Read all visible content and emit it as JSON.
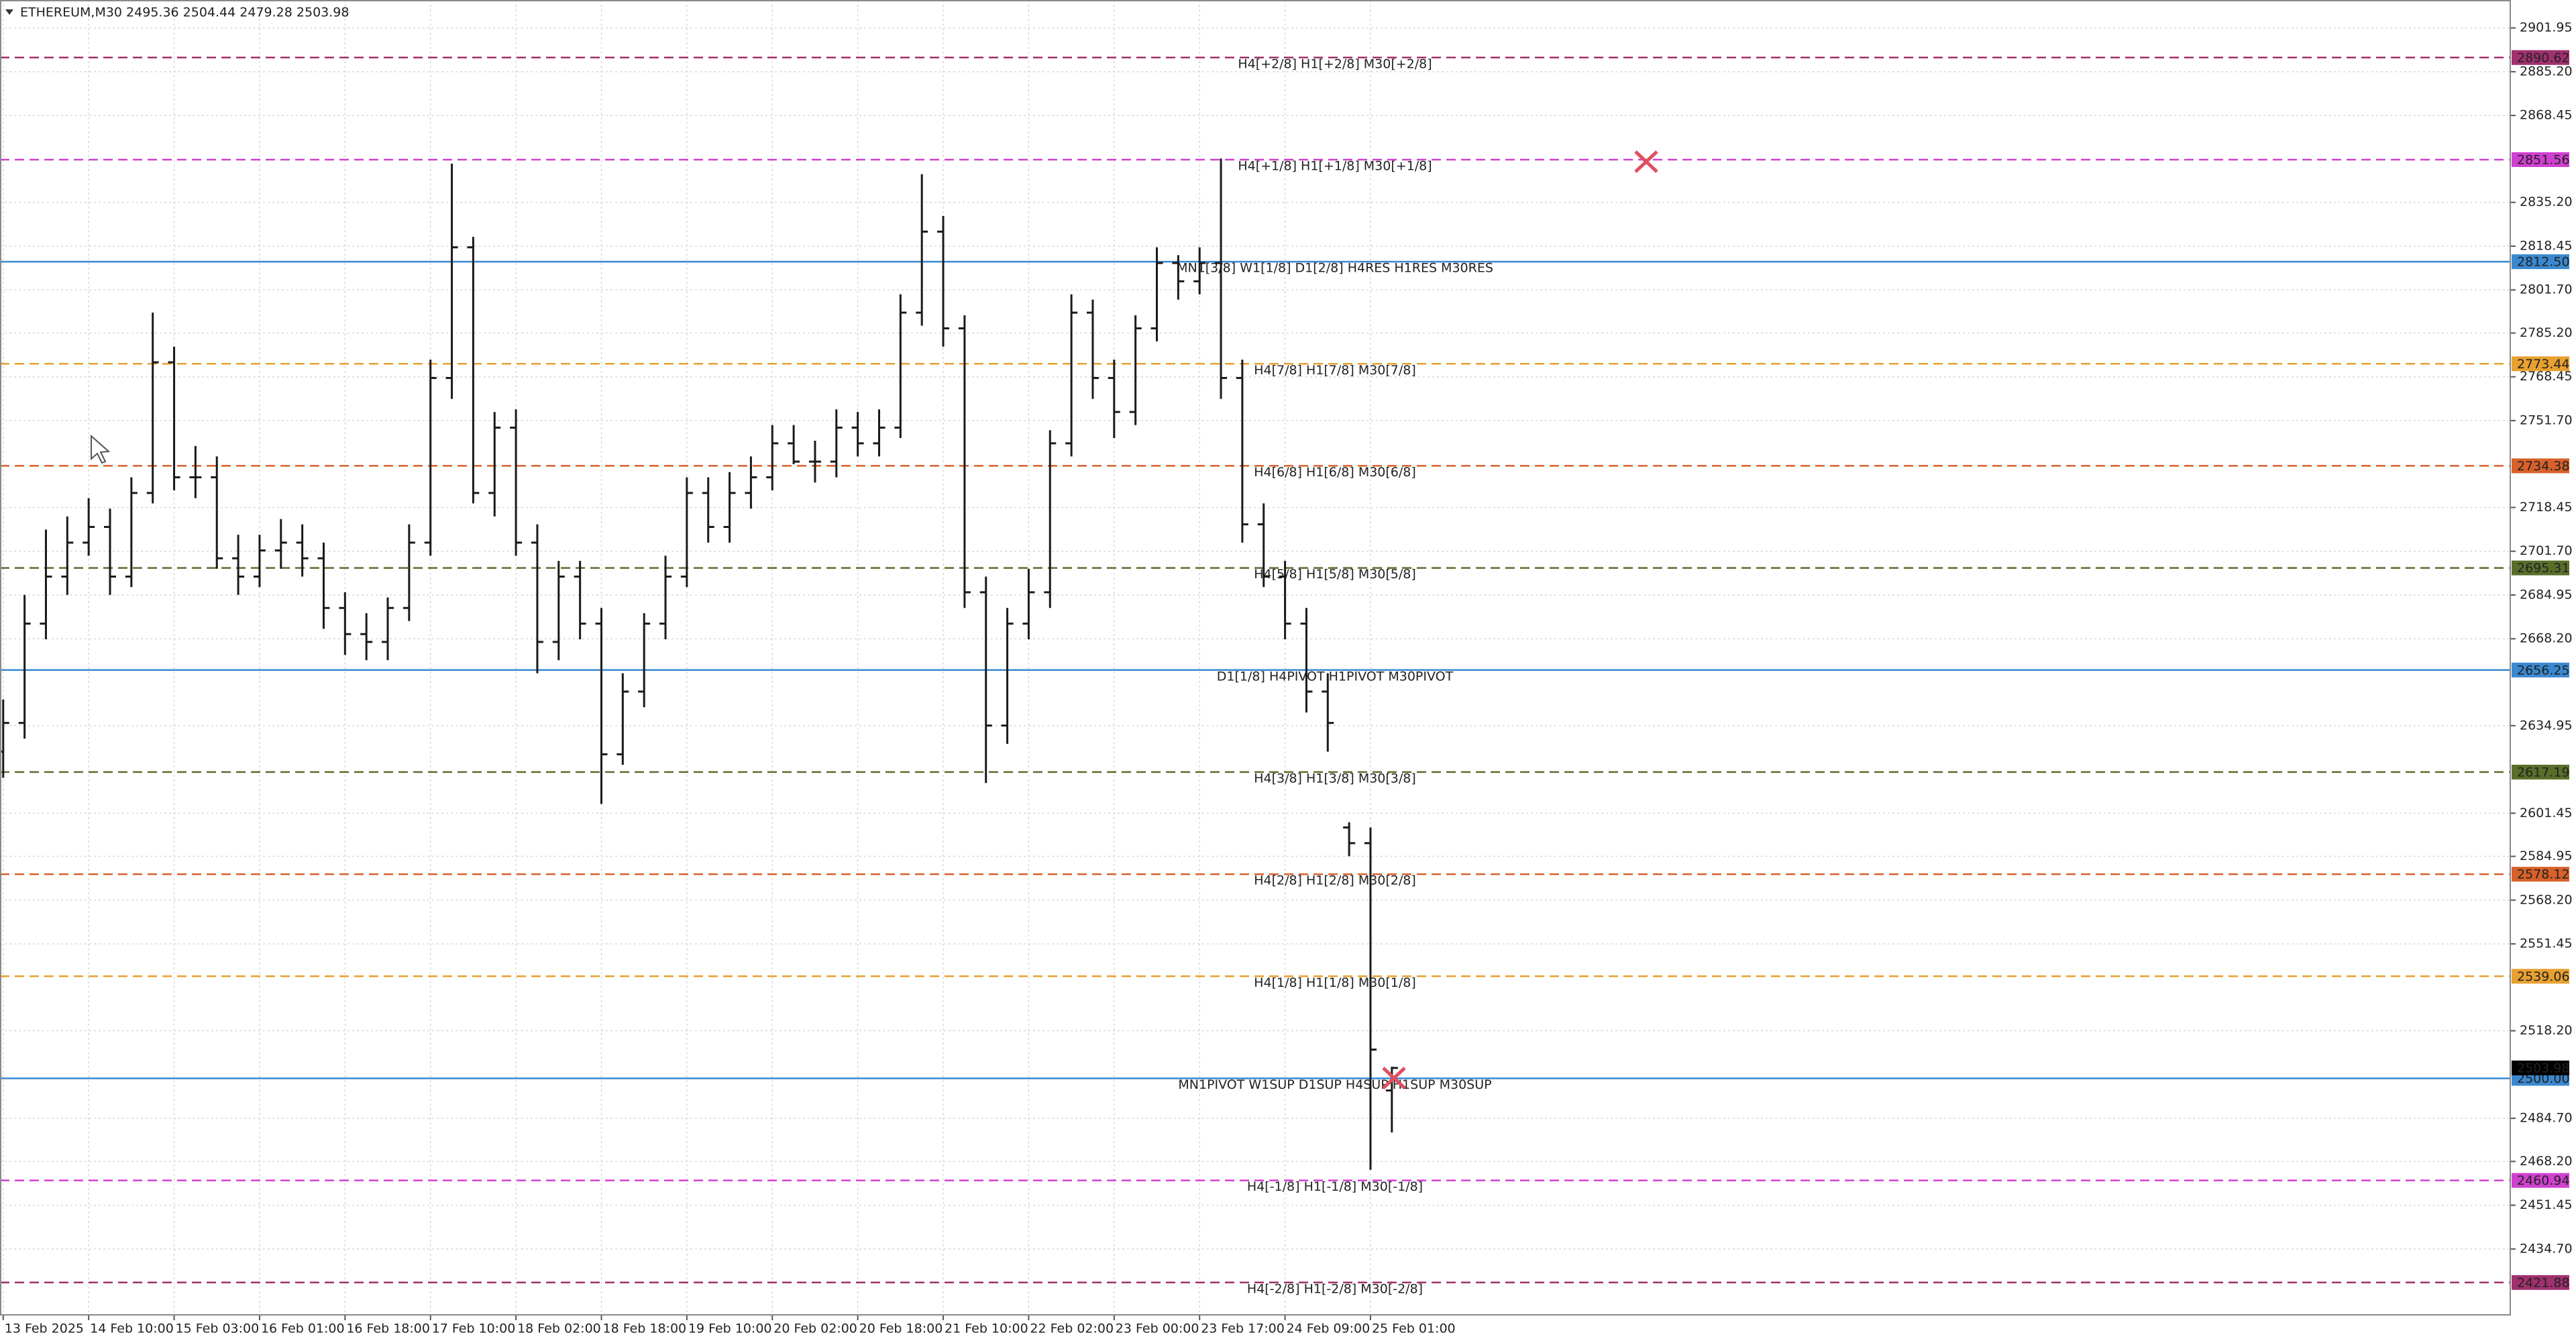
{
  "chart_data": {
    "type": "candlestick",
    "title": "ETHEREUM,M30  2495.36 2504.44 2479.28 2503.98",
    "color": "#1a1a1a",
    "grid": true,
    "xlim": [
      -0.15,
      117.35
    ],
    "ylim": [
      2409.5,
      2912.64
    ],
    "xticks": [
      {
        "value": 0,
        "label": "13 Feb 2025"
      },
      {
        "value": 4,
        "label": "14 Feb 10:00"
      },
      {
        "value": 8,
        "label": "15 Feb 03:00"
      },
      {
        "value": 12,
        "label": "16 Feb 01:00"
      },
      {
        "value": 16,
        "label": "16 Feb 18:00"
      },
      {
        "value": 20,
        "label": "17 Feb 10:00"
      },
      {
        "value": 24,
        "label": "18 Feb 02:00"
      },
      {
        "value": 28,
        "label": "18 Feb 18:00"
      },
      {
        "value": 32,
        "label": "19 Feb 10:00"
      },
      {
        "value": 36,
        "label": "20 Feb 02:00"
      },
      {
        "value": 40,
        "label": "20 Feb 18:00"
      },
      {
        "value": 44,
        "label": "21 Feb 10:00"
      },
      {
        "value": 48,
        "label": "22 Feb 02:00"
      },
      {
        "value": 52,
        "label": "23 Feb 00:00"
      },
      {
        "value": 56,
        "label": "23 Feb 17:00"
      },
      {
        "value": 60,
        "label": "24 Feb 09:00"
      },
      {
        "value": 64,
        "label": "25 Feb 01:00"
      }
    ],
    "yticks": [
      {
        "value": 2901.95,
        "label": "2901.95"
      },
      {
        "value": 2885.2,
        "label": "2885.20"
      },
      {
        "value": 2868.45,
        "label": "2868.45"
      },
      {
        "value": 2835.2,
        "label": "2835.20"
      },
      {
        "value": 2818.45,
        "label": "2818.45"
      },
      {
        "value": 2801.7,
        "label": "2801.70"
      },
      {
        "value": 2785.2,
        "label": "2785.20"
      },
      {
        "value": 2768.45,
        "label": "2768.45"
      },
      {
        "value": 2751.7,
        "label": "2751.70"
      },
      {
        "value": 2718.45,
        "label": "2718.45"
      },
      {
        "value": 2701.7,
        "label": "2701.70"
      },
      {
        "value": 2684.95,
        "label": "2684.95"
      },
      {
        "value": 2668.2,
        "label": "2668.20"
      },
      {
        "value": 2634.95,
        "label": "2634.95"
      },
      {
        "value": 2601.45,
        "label": "2601.45"
      },
      {
        "value": 2584.95,
        "label": "2584.95"
      },
      {
        "value": 2568.2,
        "label": "2568.20"
      },
      {
        "value": 2551.45,
        "label": "2551.45"
      },
      {
        "value": 2518.2,
        "label": "2518.20"
      },
      {
        "value": 2484.7,
        "label": "2484.70"
      },
      {
        "value": 2468.2,
        "label": "2468.20"
      },
      {
        "value": 2451.45,
        "label": "2451.45"
      },
      {
        "value": 2434.7,
        "label": "2434.70"
      }
    ],
    "x": [
      0,
      1,
      2,
      3,
      4,
      5,
      6,
      7,
      8,
      9,
      10,
      11,
      12,
      13,
      14,
      15,
      16,
      17,
      18,
      19,
      20,
      21,
      22,
      23,
      24,
      25,
      26,
      27,
      28,
      29,
      30,
      31,
      32,
      33,
      34,
      35,
      36,
      37,
      38,
      39,
      40,
      41,
      42,
      43,
      44,
      45,
      46,
      47,
      48,
      49,
      50,
      51,
      52,
      53,
      54,
      55,
      56,
      57,
      58,
      59,
      60,
      61,
      62,
      63,
      64,
      65
    ],
    "open": [
      2625,
      2636,
      2674,
      2692,
      2705,
      2711,
      2692,
      2724,
      2774,
      2730,
      2730,
      2699,
      2692,
      2702,
      2705,
      2699,
      2680,
      2670,
      2667,
      2680,
      2705,
      2768,
      2818,
      2724,
      2749,
      2705,
      2667,
      2692,
      2674,
      2624,
      2648,
      2674,
      2692,
      2724,
      2711,
      2724,
      2730,
      2743,
      2736,
      2736,
      2749,
      2743,
      2749,
      2793,
      2824,
      2787,
      2686,
      2635,
      2674,
      2686,
      2743,
      2793,
      2768,
      2755,
      2787,
      2812,
      2805,
      2812,
      2768,
      2712,
      2692,
      2674,
      2648,
      2596,
      2590,
      2495.36
    ],
    "high": [
      2645,
      2685,
      2710,
      2715,
      2722,
      2718,
      2730,
      2793,
      2780,
      2742,
      2738,
      2708,
      2708,
      2714,
      2712,
      2705,
      2686,
      2678,
      2684,
      2712,
      2775,
      2850,
      2822,
      2755,
      2756,
      2712,
      2698,
      2698,
      2680,
      2655,
      2678,
      2700,
      2730,
      2730,
      2732,
      2738,
      2750,
      2750,
      2744,
      2756,
      2755,
      2756,
      2800,
      2846,
      2830,
      2792,
      2692,
      2680,
      2695,
      2748,
      2800,
      2798,
      2775,
      2792,
      2818,
      2815,
      2818,
      2852,
      2775,
      2720,
      2698,
      2680,
      2655,
      2598,
      2596,
      2504.44
    ],
    "low": [
      2615,
      2630,
      2668,
      2685,
      2700,
      2685,
      2688,
      2720,
      2725,
      2722,
      2695,
      2685,
      2688,
      2695,
      2692,
      2672,
      2662,
      2660,
      2660,
      2675,
      2700,
      2760,
      2720,
      2715,
      2700,
      2655,
      2660,
      2668,
      2605,
      2620,
      2642,
      2668,
      2688,
      2705,
      2705,
      2718,
      2725,
      2735,
      2728,
      2730,
      2738,
      2738,
      2745,
      2788,
      2780,
      2680,
      2613,
      2628,
      2668,
      2680,
      2738,
      2760,
      2745,
      2750,
      2782,
      2798,
      2800,
      2760,
      2705,
      2688,
      2668,
      2640,
      2625,
      2585,
      2465,
      2479.28
    ],
    "close": [
      2636,
      2674,
      2692,
      2705,
      2711,
      2692,
      2724,
      2774,
      2730,
      2730,
      2699,
      2692,
      2702,
      2705,
      2699,
      2680,
      2670,
      2667,
      2680,
      2705,
      2768,
      2818,
      2724,
      2749,
      2705,
      2667,
      2692,
      2674,
      2624,
      2648,
      2674,
      2692,
      2724,
      2711,
      2724,
      2730,
      2743,
      2736,
      2736,
      2749,
      2743,
      2749,
      2793,
      2824,
      2787,
      2686,
      2635,
      2674,
      2686,
      2743,
      2793,
      2768,
      2755,
      2787,
      2812,
      2805,
      2812,
      2768,
      2712,
      2692,
      2674,
      2648,
      2636,
      2590,
      2511,
      2503.98
    ],
    "levels": [
      {
        "value": 2890.62,
        "tag": "2890.62",
        "label": "H4[+2/8] H1[+2/8] M30[+2/8]",
        "color": "#a0306e",
        "style": "dashed"
      },
      {
        "value": 2851.56,
        "tag": "2851.56",
        "label": "H4[+1/8] H1[+1/8] M30[+1/8]",
        "color": "#d040d0",
        "style": "dashed"
      },
      {
        "value": 2812.5,
        "tag": "2812.50",
        "label": "MN1[3/8] W1[1/8] D1[2/8] H4RES H1RES M30RES",
        "color": "#3a88d0",
        "style": "solid"
      },
      {
        "value": 2773.44,
        "tag": "2773.44",
        "label": "H4[7/8] H1[7/8] M30[7/8]",
        "color": "#e8a030",
        "style": "dashed"
      },
      {
        "value": 2734.38,
        "tag": "2734.38",
        "label": "H4[6/8] H1[6/8] M30[6/8]",
        "color": "#d8602a",
        "style": "dashed"
      },
      {
        "value": 2695.31,
        "tag": "2695.31",
        "label": "H4[5/8] H1[5/8] M30[5/8]",
        "color": "#5a6e2a",
        "style": "dashed"
      },
      {
        "value": 2656.25,
        "tag": "2656.25",
        "label": "D1[1/8] H4PIVOT H1PIVOT M30PIVOT",
        "color": "#3a88d0",
        "style": "solid"
      },
      {
        "value": 2617.19,
        "tag": "2617.19",
        "label": "H4[3/8] H1[3/8] M30[3/8]",
        "color": "#5a6e2a",
        "style": "dashed"
      },
      {
        "value": 2578.12,
        "tag": "2578.12",
        "label": "H4[2/8] H1[2/8] M30[2/8]",
        "color": "#d8602a",
        "style": "dashed"
      },
      {
        "value": 2539.06,
        "tag": "2539.06",
        "label": "H4[1/8] H1[1/8] M30[1/8]",
        "color": "#e8a030",
        "style": "dashed"
      },
      {
        "value": 2500,
        "tag": "2500.00",
        "label": "MN1PIVOT W1SUP D1SUP H4SUP H1SUP M30SUP",
        "color": "#3a88d0",
        "style": "solid"
      },
      {
        "value": 2460.94,
        "tag": "2460.94",
        "label": "H4[-1/8] H1[-1/8] M30[-1/8]",
        "color": "#d040d0",
        "style": "dashed"
      },
      {
        "value": 2421.88,
        "tag": "2421.88",
        "label": "H4[-2/8] H1[-2/8] M30[-2/8]",
        "color": "#a0306e",
        "style": "dashed"
      }
    ],
    "last_price": {
      "value": 2503.98,
      "color": "#000000"
    }
  }
}
